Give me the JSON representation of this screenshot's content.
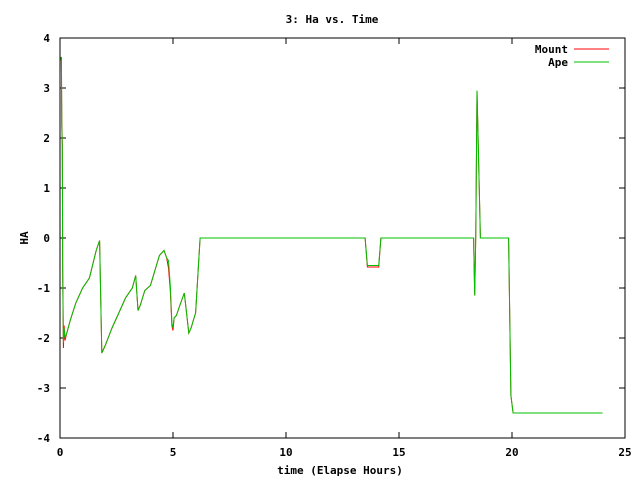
{
  "chart_data": {
    "type": "line",
    "title": "3: Ha vs. Time",
    "xlabel": "time (Elapse Hours)",
    "ylabel": "HA",
    "xlim": [
      0,
      25
    ],
    "ylim": [
      -4,
      4
    ],
    "xticks": [
      "0",
      "5",
      "10",
      "15",
      "20",
      "25"
    ],
    "yticks": [
      "-4",
      "-3",
      "-2",
      "-1",
      "0",
      "1",
      "2",
      "3",
      "4"
    ],
    "grid": false,
    "legend_position": "top-right",
    "series": [
      {
        "name": "Mount",
        "color": "#ff0000",
        "x": [
          0.0,
          0.06,
          0.08,
          0.1,
          0.12,
          0.15,
          0.18,
          0.22,
          0.3,
          0.45,
          0.7,
          1.0,
          1.3,
          1.6,
          1.75,
          1.85,
          1.95,
          2.0,
          2.3,
          2.6,
          2.9,
          3.2,
          3.35,
          3.45,
          3.55,
          3.75,
          4.0,
          4.2,
          4.4,
          4.6,
          4.72,
          4.8,
          4.88,
          4.95,
          5.0,
          5.05,
          5.15,
          5.3,
          5.5,
          5.7,
          5.8,
          5.9,
          6.0,
          6.2,
          6.3,
          6.4,
          6.5,
          8.0,
          10.0,
          12.0,
          13.5,
          13.6,
          14.1,
          14.2,
          15.0,
          17.0,
          18.2,
          18.3,
          18.35,
          18.4,
          18.45,
          18.6,
          18.75,
          19.0,
          19.5,
          19.85,
          19.95,
          20.05,
          21.0,
          22.5,
          24.0
        ],
        "y": [
          3.55,
          3.62,
          2.3,
          1.9,
          -0.7,
          -2.2,
          -1.75,
          -2.05,
          -1.9,
          -1.65,
          -1.3,
          -1.0,
          -0.8,
          -0.25,
          -0.05,
          -2.3,
          -2.2,
          -2.15,
          -1.8,
          -1.5,
          -1.2,
          -1.0,
          -0.75,
          -1.45,
          -1.35,
          -1.05,
          -0.95,
          -0.65,
          -0.35,
          -0.25,
          -0.4,
          -0.6,
          -1.05,
          -1.75,
          -1.85,
          -1.6,
          -1.55,
          -1.35,
          -1.1,
          -1.9,
          -1.8,
          -1.65,
          -1.5,
          -0.0,
          0.0,
          0.0,
          0.0,
          0.0,
          0.0,
          0.0,
          0.0,
          -0.58,
          -0.58,
          0.0,
          0.0,
          0.0,
          0.0,
          0.0,
          -1.15,
          0.1,
          2.95,
          0.0,
          0.0,
          0.0,
          0.0,
          0.0,
          -3.15,
          -3.5,
          -3.5,
          -3.5,
          -3.5
        ]
      },
      {
        "name": "Ape",
        "color": "#00c000",
        "x": [
          0.0,
          0.06,
          0.08,
          0.1,
          0.12,
          0.15,
          0.18,
          0.22,
          0.3,
          0.45,
          0.7,
          1.0,
          1.3,
          1.6,
          1.75,
          1.85,
          1.95,
          2.0,
          2.3,
          2.6,
          2.9,
          3.2,
          3.35,
          3.45,
          3.55,
          3.75,
          4.0,
          4.2,
          4.4,
          4.6,
          4.72,
          4.8,
          4.88,
          4.95,
          5.0,
          5.05,
          5.15,
          5.3,
          5.5,
          5.7,
          5.8,
          5.9,
          6.0,
          6.2,
          6.3,
          6.4,
          6.5,
          8.0,
          10.0,
          12.0,
          13.5,
          13.6,
          14.1,
          14.2,
          15.0,
          17.0,
          18.2,
          18.3,
          18.35,
          18.4,
          18.45,
          18.6,
          18.75,
          19.0,
          19.5,
          19.85,
          19.95,
          20.05,
          21.0,
          22.5,
          24.0
        ],
        "y": [
          3.55,
          3.62,
          2.2,
          1.8,
          -0.6,
          -2.1,
          -1.8,
          -2.0,
          -1.9,
          -1.65,
          -1.3,
          -1.0,
          -0.8,
          -0.25,
          -0.05,
          -2.3,
          -2.2,
          -2.15,
          -1.8,
          -1.5,
          -1.2,
          -1.0,
          -0.75,
          -1.45,
          -1.35,
          -1.05,
          -0.95,
          -0.65,
          -0.35,
          -0.25,
          -0.4,
          -0.45,
          -0.95,
          -1.7,
          -1.8,
          -1.6,
          -1.55,
          -1.35,
          -1.1,
          -1.9,
          -1.8,
          -1.65,
          -1.5,
          -0.0,
          0.0,
          0.0,
          0.0,
          0.0,
          0.0,
          0.0,
          0.0,
          -0.55,
          -0.55,
          0.0,
          0.0,
          0.0,
          0.0,
          0.0,
          -1.15,
          0.1,
          2.95,
          0.0,
          0.0,
          0.0,
          0.0,
          0.0,
          -3.15,
          -3.5,
          -3.5,
          -3.5,
          -3.5
        ]
      }
    ]
  }
}
